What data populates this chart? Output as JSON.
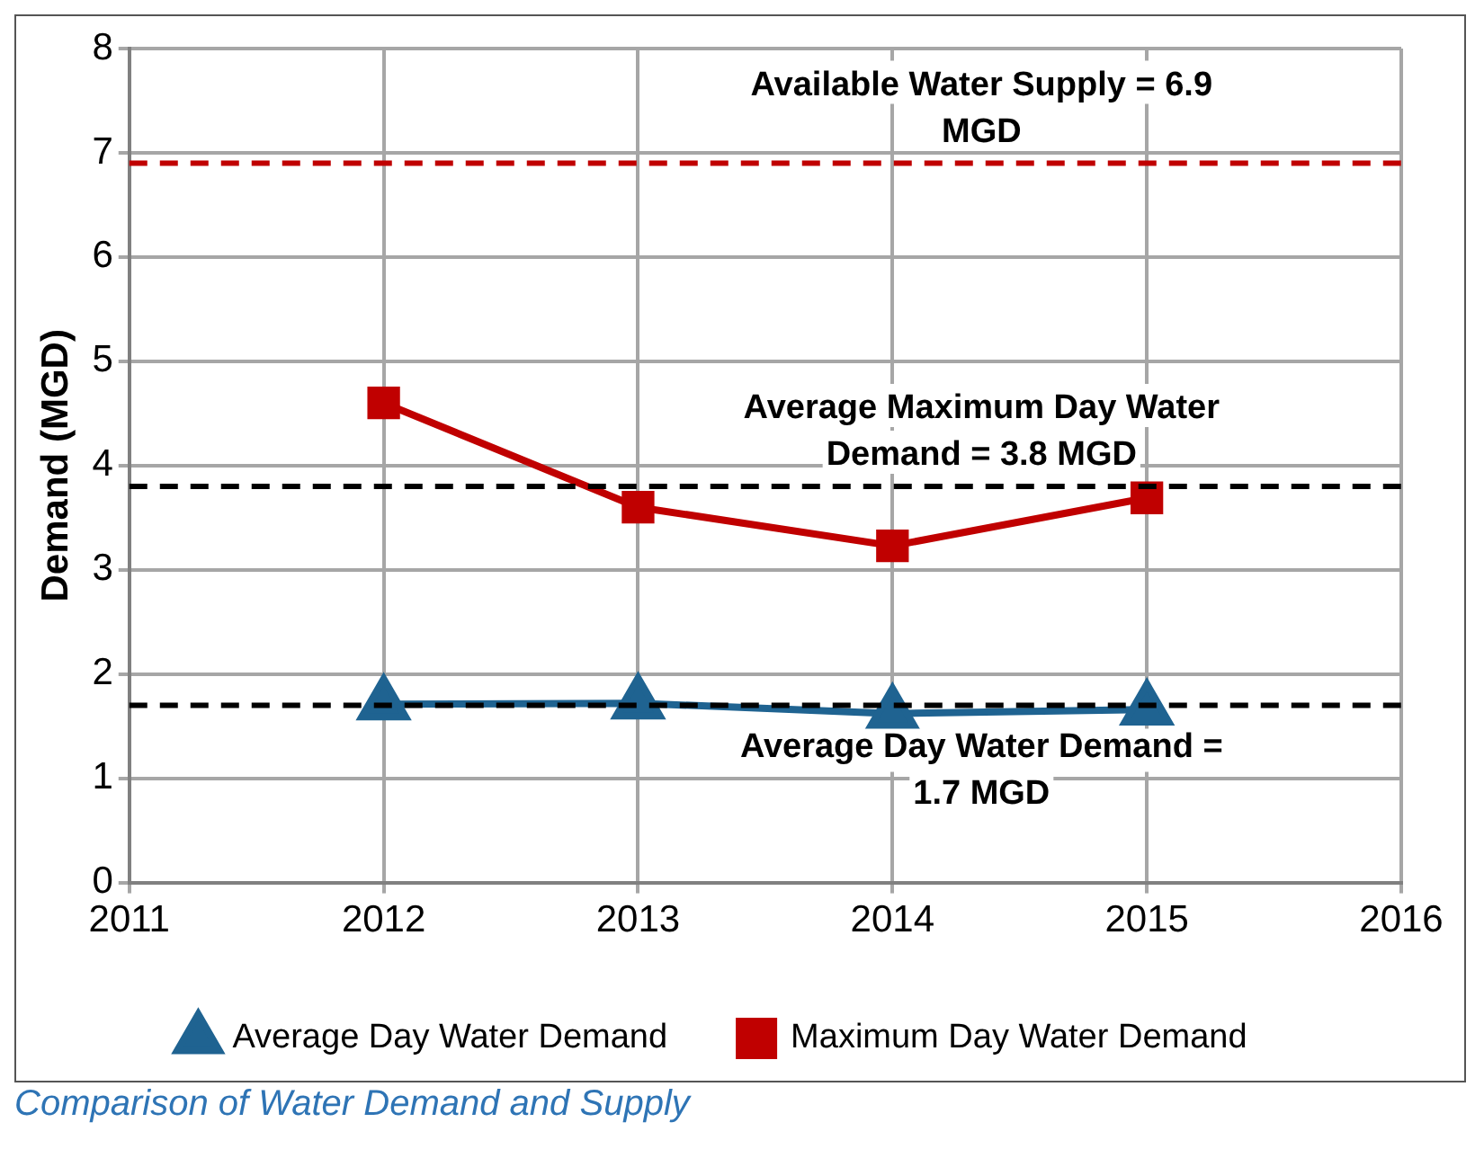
{
  "chart_data": {
    "type": "line",
    "ylabel": "Demand (MGD)",
    "x": [
      2012,
      2013,
      2014,
      2015
    ],
    "series": [
      {
        "name": "Average Day Water Demand",
        "color": "#1f6391",
        "values": [
          1.71,
          1.72,
          1.62,
          1.66
        ],
        "marker": "triangle"
      },
      {
        "name": "Maximum Day Water Demand",
        "color": "#c00000",
        "values": [
          4.6,
          3.6,
          3.23,
          3.69
        ],
        "marker": "square"
      }
    ],
    "xlim": [
      2011,
      2016
    ],
    "xticks": [
      2011,
      2012,
      2013,
      2014,
      2015,
      2016
    ],
    "ylim": [
      0,
      8
    ],
    "yticks": [
      0,
      1,
      2,
      3,
      4,
      5,
      6,
      7,
      8
    ],
    "ref_lines": [
      {
        "axis": "y",
        "value": 6.9,
        "label": "Available Water Supply = 6.9 MGD",
        "color": "#c00000",
        "line_style": "dashed"
      },
      {
        "axis": "y",
        "value": 3.8,
        "label": "Average Maximum Day Water Demand = 3.8 MGD",
        "color": "#000000",
        "line_style": "dashed"
      },
      {
        "axis": "y",
        "value": 1.7,
        "label": "Average Day Water Demand = 1.7 MGD",
        "color": "#000000",
        "line_style": "dashed"
      }
    ],
    "annotations": [
      "Comparison of Water Demand and Supply"
    ],
    "grid": true,
    "legend": "bottom",
    "line_style": "solid"
  }
}
